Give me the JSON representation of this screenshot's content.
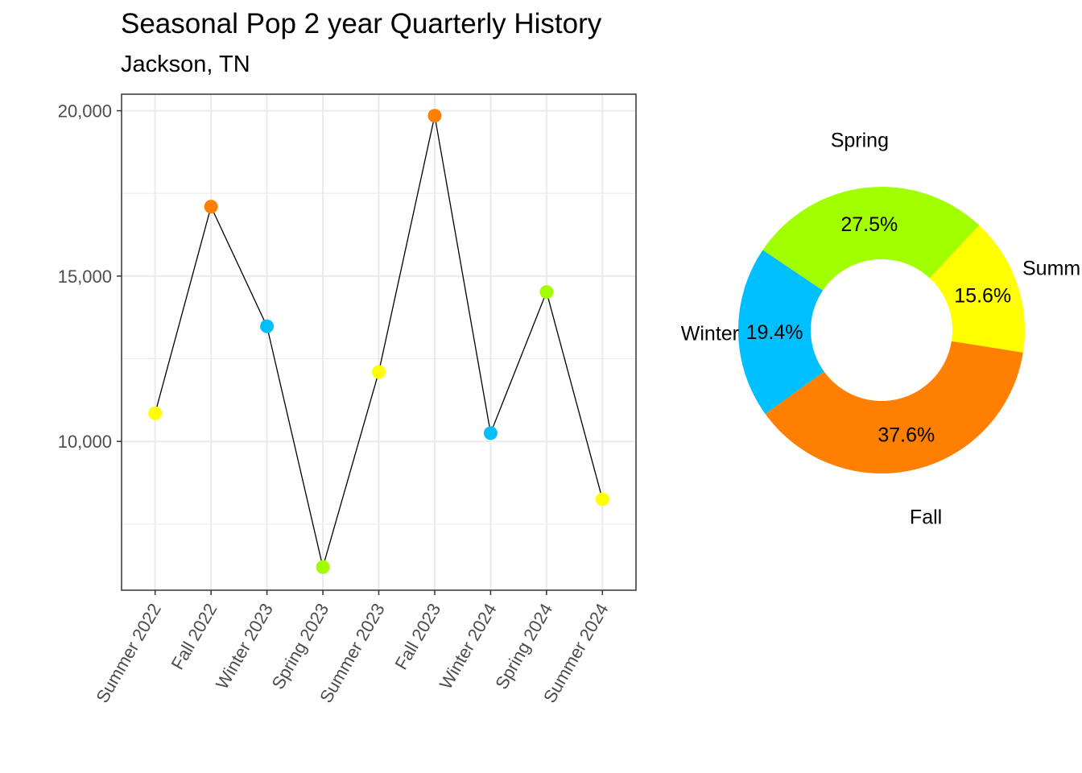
{
  "title": "Seasonal Pop 2 year Quarterly History",
  "subtitle": "Jackson, TN",
  "colors": {
    "Summer": "#ffff00",
    "Fall": "#ff7f00",
    "Winter": "#00bfff",
    "Spring": "#a2ff00",
    "line": "#000000",
    "grid": "#ebebeb",
    "panel_border": "#333333"
  },
  "chart_data": [
    {
      "type": "line",
      "categories": [
        "Summer 2022",
        "Fall 2022",
        "Winter 2023",
        "Spring 2023",
        "Summer 2023",
        "Fall 2023",
        "Winter 2024",
        "Spring 2024",
        "Summer 2024"
      ],
      "seasons": [
        "Summer",
        "Fall",
        "Winter",
        "Spring",
        "Summer",
        "Fall",
        "Winter",
        "Spring",
        "Summer"
      ],
      "values": [
        10850,
        17100,
        13480,
        6200,
        12100,
        19850,
        10250,
        14520,
        8250
      ],
      "ylim": [
        5500,
        20500
      ],
      "yticks": [
        10000,
        15000,
        20000
      ],
      "ytick_labels": [
        "10,000",
        "15,000",
        "20,000"
      ],
      "grid": true,
      "xlabel": "",
      "ylabel": ""
    },
    {
      "type": "pie",
      "donut": true,
      "labels": [
        "Spring",
        "Summer",
        "Fall",
        "Winter"
      ],
      "values": [
        27.5,
        15.6,
        37.6,
        19.4
      ],
      "value_labels": [
        "27.5%",
        "15.6%",
        "37.6%",
        "19.4%"
      ],
      "outer_labels": [
        "Spring",
        "Summ",
        "Fall",
        "Winter"
      ]
    }
  ]
}
